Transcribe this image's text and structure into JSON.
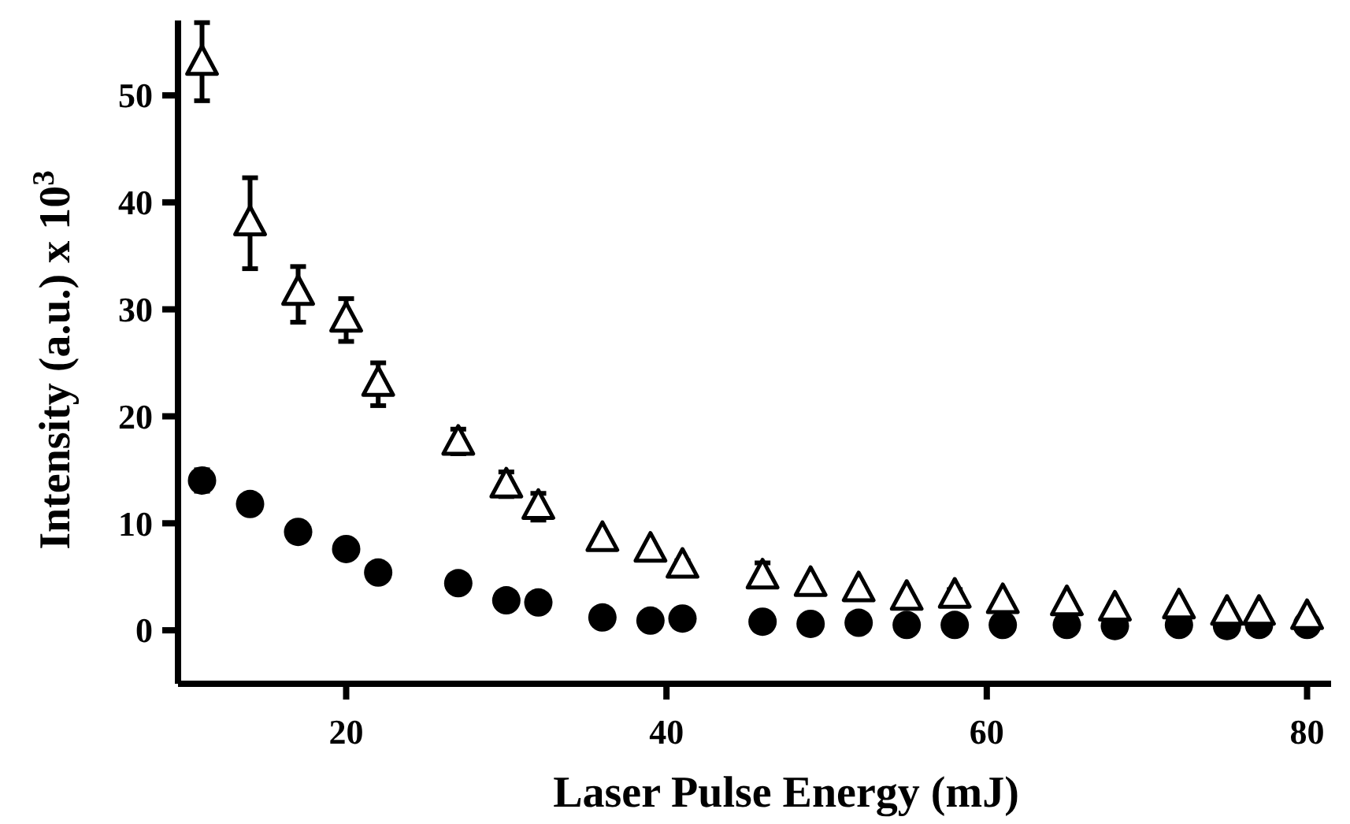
{
  "chart_data": {
    "type": "scatter",
    "xlabel": "Laser Pulse Energy (mJ)",
    "ylabel": "Intensity (a.u.) x 10$^{3}$",
    "xlim": [
      9.5,
      81.5
    ],
    "ylim": [
      -5,
      57
    ],
    "xticks": [
      20,
      40,
      60,
      80
    ],
    "yticks": [
      0,
      10,
      20,
      30,
      40,
      50
    ],
    "grid": false,
    "series": [
      {
        "color": "#000000",
        "marker": "circle",
        "x": [
          11,
          14,
          17,
          20,
          22,
          27,
          30,
          32,
          36,
          39,
          41,
          46,
          49,
          52,
          55,
          58,
          61,
          65,
          68,
          72,
          75,
          77,
          80
        ],
        "values": [
          14,
          11.8,
          9.2,
          7.6,
          5.4,
          4.4,
          2.8,
          2.6,
          1.2,
          0.9,
          1.1,
          0.8,
          0.6,
          0.7,
          0.5,
          0.5,
          0.5,
          0.5,
          0.4,
          0.5,
          0.4,
          0.5,
          0.5
        ],
        "errors": [
          1,
          null,
          null,
          null,
          null,
          null,
          null,
          null,
          null,
          null,
          null,
          null,
          null,
          null,
          null,
          null,
          null,
          null,
          null,
          null,
          null,
          null,
          null
        ]
      },
      {
        "color": "#000000",
        "marker": "triangle",
        "x": [
          11,
          14,
          17,
          20,
          22,
          27,
          30,
          32,
          36,
          39,
          41,
          46,
          49,
          52,
          55,
          58,
          61,
          65,
          68,
          72,
          75,
          77,
          80
        ],
        "values": [
          53,
          38,
          31.5,
          29,
          23,
          17.5,
          13.5,
          11.5,
          8.5,
          7.5,
          6,
          5,
          4.3,
          3.8,
          3,
          3.2,
          2.7,
          2.5,
          2,
          2.2,
          1.6,
          1.6,
          1.2
        ],
        "errors": [
          [
            49.5,
            56.8
          ],
          [
            33.8,
            42.3
          ],
          [
            28.8,
            34
          ],
          [
            27,
            31
          ],
          [
            21,
            25
          ],
          [
            16.5,
            18.8
          ],
          [
            12.5,
            14.8
          ],
          [
            10.3,
            12.8
          ],
          null,
          null,
          [
            5.3,
            6.5
          ],
          [
            4.3,
            6.3
          ],
          null,
          null,
          null,
          [
            2.8,
            3.8
          ],
          null,
          null,
          null,
          null,
          null,
          null,
          null
        ]
      }
    ]
  }
}
